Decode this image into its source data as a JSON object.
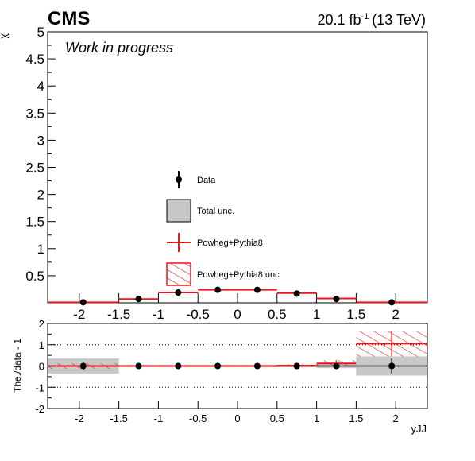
{
  "header": {
    "experiment": "CMS",
    "lumi_value": "20.1 fb",
    "lumi_exponent": "-1",
    "energy": "(13 TeV)",
    "status": "Work in progress"
  },
  "legend": {
    "data": "Data",
    "total_unc": "Total unc.",
    "mc": "Powheg+Pythia8",
    "mc_unc": "Powheg+Pythia8 unc"
  },
  "colors": {
    "mc": "#e41a1c",
    "band": "#c8c8c8",
    "data": "#000000"
  },
  "chart_data": [
    {
      "type": "line",
      "panel": "main",
      "ylabel": "χ",
      "xlim": [
        -2.4,
        2.4
      ],
      "ylim": [
        0,
        5
      ],
      "xticks": [
        -2,
        -1.5,
        -1,
        -0.5,
        0,
        0.5,
        1,
        1.5,
        2
      ],
      "yticks": [
        0.5,
        1,
        1.5,
        2,
        2.5,
        3,
        3.5,
        4,
        4.5,
        5
      ],
      "bins": [
        [
          -2.4,
          -1.5
        ],
        [
          -1.5,
          -1
        ],
        [
          -1,
          -0.5
        ],
        [
          -0.5,
          0
        ],
        [
          0,
          0.5
        ],
        [
          0.5,
          1
        ],
        [
          1,
          1.5
        ],
        [
          1.5,
          2.4
        ]
      ],
      "data_x": [
        -1.95,
        -1.25,
        -0.75,
        -0.25,
        0.25,
        0.75,
        1.25,
        1.95
      ],
      "data_y": [
        0.01,
        0.07,
        0.19,
        0.24,
        0.24,
        0.17,
        0.07,
        0.01
      ],
      "mc_y": [
        0.01,
        0.07,
        0.19,
        0.24,
        0.24,
        0.18,
        0.08,
        0.01
      ]
    },
    {
      "type": "line",
      "panel": "ratio",
      "xlabel": "yJJ",
      "ylabel": "The./data - 1",
      "xlim": [
        -2.4,
        2.4
      ],
      "ylim": [
        -2,
        2
      ],
      "xticks": [
        -2,
        -1.5,
        -1,
        -0.5,
        0,
        0.5,
        1,
        1.5,
        2
      ],
      "yticks": [
        -2,
        -1,
        0,
        1,
        2
      ],
      "bins": [
        [
          -2.4,
          -1.5
        ],
        [
          -1.5,
          -1
        ],
        [
          -1,
          -0.5
        ],
        [
          -0.5,
          0
        ],
        [
          0,
          0.5
        ],
        [
          0.5,
          1
        ],
        [
          1,
          1.5
        ],
        [
          1.5,
          2.4
        ]
      ],
      "data_x": [
        -1.95,
        -1.25,
        -0.75,
        -0.25,
        0.25,
        0.75,
        1.25,
        1.95
      ],
      "data_y": [
        0,
        0,
        0,
        0,
        0,
        0,
        0,
        0
      ],
      "data_err": [
        0.18,
        0.05,
        0.05,
        0.05,
        0.05,
        0.05,
        0.05,
        0.35
      ],
      "total_unc": [
        0.35,
        0.05,
        0.05,
        0.05,
        0.05,
        0.05,
        0.1,
        0.45
      ],
      "mc_ratio": [
        0,
        0,
        0,
        0,
        0,
        0.02,
        0.12,
        1.05
      ],
      "mc_unc": [
        0.12,
        0.04,
        0.04,
        0.04,
        0.04,
        0.06,
        0.15,
        0.6
      ]
    }
  ]
}
